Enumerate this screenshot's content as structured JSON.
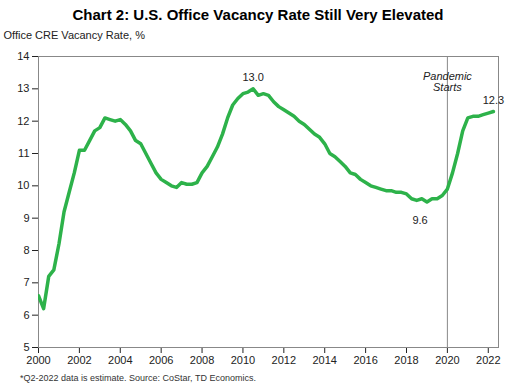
{
  "chart_data": {
    "type": "line",
    "title": "Chart 2: U.S. Office Vacancy Rate Still Very Elevated",
    "y_label": "Office CRE Vacancy Rate, %",
    "caption": "*Q2-2022 data is estimate. Source: CoStar, TD Economics.",
    "x": [
      2000,
      2000.25,
      2000.5,
      2000.75,
      2001,
      2001.25,
      2001.5,
      2001.75,
      2002,
      2002.25,
      2002.5,
      2002.75,
      2003,
      2003.25,
      2003.5,
      2003.75,
      2004,
      2004.25,
      2004.5,
      2004.75,
      2005,
      2005.25,
      2005.5,
      2005.75,
      2006,
      2006.25,
      2006.5,
      2006.75,
      2007,
      2007.25,
      2007.5,
      2007.75,
      2008,
      2008.25,
      2008.5,
      2008.75,
      2009,
      2009.25,
      2009.5,
      2009.75,
      2010,
      2010.25,
      2010.5,
      2010.75,
      2011,
      2011.25,
      2011.5,
      2011.75,
      2012,
      2012.25,
      2012.5,
      2012.75,
      2013,
      2013.25,
      2013.5,
      2013.75,
      2014,
      2014.25,
      2014.5,
      2014.75,
      2015,
      2015.25,
      2015.5,
      2015.75,
      2016,
      2016.25,
      2016.5,
      2016.75,
      2017,
      2017.25,
      2017.5,
      2017.75,
      2018,
      2018.25,
      2018.5,
      2018.75,
      2019,
      2019.25,
      2019.5,
      2019.75,
      2020,
      2020.25,
      2020.5,
      2020.75,
      2021,
      2021.25,
      2021.5,
      2021.75,
      2022,
      2022.25
    ],
    "series": [
      {
        "name": "Office CRE Vacancy Rate",
        "color": "#2db24a",
        "values": [
          6.6,
          6.2,
          7.2,
          7.4,
          8.2,
          9.2,
          9.8,
          10.4,
          11.1,
          11.1,
          11.4,
          11.7,
          11.8,
          12.1,
          12.05,
          12.0,
          12.05,
          11.9,
          11.7,
          11.4,
          11.3,
          11.0,
          10.7,
          10.4,
          10.2,
          10.1,
          10.0,
          9.95,
          10.1,
          10.05,
          10.05,
          10.1,
          10.4,
          10.6,
          10.9,
          11.2,
          11.6,
          12.1,
          12.5,
          12.7,
          12.85,
          12.9,
          13.0,
          12.8,
          12.85,
          12.8,
          12.6,
          12.45,
          12.35,
          12.25,
          12.15,
          12.0,
          11.9,
          11.75,
          11.6,
          11.5,
          11.3,
          11.0,
          10.9,
          10.75,
          10.6,
          10.4,
          10.35,
          10.2,
          10.1,
          10.0,
          9.95,
          9.9,
          9.85,
          9.85,
          9.8,
          9.8,
          9.75,
          9.6,
          9.55,
          9.6,
          9.5,
          9.6,
          9.6,
          9.7,
          9.9,
          10.4,
          11.0,
          11.7,
          12.1,
          12.15,
          12.15,
          12.2,
          12.25,
          12.3
        ]
      }
    ],
    "xlim": [
      2000,
      2022.5
    ],
    "xticks": [
      2000,
      2002,
      2004,
      2006,
      2008,
      2010,
      2012,
      2014,
      2016,
      2018,
      2020,
      2022
    ],
    "ylim": [
      5,
      14
    ],
    "yticks": [
      5,
      6,
      7,
      8,
      9,
      10,
      11,
      12,
      13,
      14
    ],
    "grid": false,
    "annotations": [
      {
        "text": "13.0",
        "x": 2010.5,
        "y": 13.0
      },
      {
        "text": "12.3",
        "x": 2022.25,
        "y": 12.3
      },
      {
        "text": "9.6",
        "x": 2019.25,
        "y": 9.6
      }
    ],
    "vertical_line": {
      "text": "Pandemic Starts",
      "x": 2020
    }
  }
}
